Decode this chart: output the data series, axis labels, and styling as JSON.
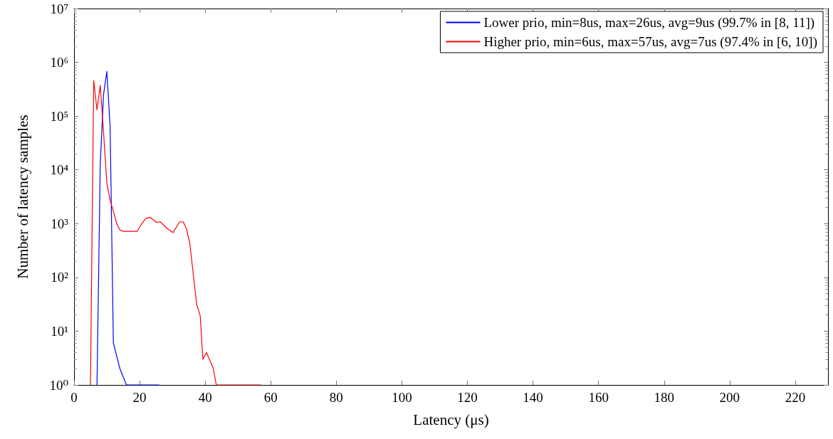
{
  "chart_data": {
    "type": "line",
    "xlabel": "Latency (μs)",
    "ylabel": "Number of latency samples",
    "log": "y",
    "grid": false,
    "legend": "top right",
    "marker": "none",
    "line_style": "solid",
    "xlim": [
      0,
      230
    ],
    "xticks": [
      0,
      20,
      40,
      60,
      80,
      100,
      120,
      140,
      160,
      180,
      200,
      220
    ],
    "ylim": [
      1,
      10000000
    ],
    "yticks": [
      {
        "value": 1,
        "label": "10⁰"
      },
      {
        "value": 10,
        "label": "10¹"
      },
      {
        "value": 100,
        "label": "10²"
      },
      {
        "value": 1000,
        "label": "10³"
      },
      {
        "value": 10000,
        "label": "10⁴"
      },
      {
        "value": 100000,
        "label": "10⁵"
      },
      {
        "value": 1000000,
        "label": "10⁶"
      },
      {
        "value": 10000000,
        "label": "10⁷"
      }
    ],
    "series": [
      {
        "name": "Lower prio, min=8us, max=26us, avg=9us (99.7% in [8, 11])",
        "color": "#0000ff",
        "x": [
          7,
          8,
          9,
          10,
          11,
          12,
          14,
          16,
          26
        ],
        "values": [
          1,
          13000,
          250000,
          680000,
          65000,
          6,
          2,
          1,
          1
        ]
      },
      {
        "name": "Higher prio, min=6us, max=57us, avg=7us (97.4% in [6, 10])",
        "color": "#ff0000",
        "x": [
          5,
          6,
          7,
          8,
          9,
          10,
          11,
          12,
          13,
          14,
          15,
          16.7,
          19.3,
          20.5,
          21.9,
          23.3,
          25.2,
          26.3,
          28.3,
          30.2,
          32.2,
          33.3,
          34.3,
          35.3,
          37.4,
          38.5,
          39.3,
          40.4,
          42.4,
          43.4,
          57
        ],
        "values": [
          1,
          460000,
          130000,
          370000,
          50000,
          5700,
          2700,
          1700,
          1000,
          760,
          720,
          720,
          720,
          970,
          1250,
          1300,
          1050,
          1080,
          820,
          680,
          1080,
          1080,
          800,
          430,
          32,
          19,
          3,
          4,
          2.1,
          1,
          1
        ]
      }
    ]
  }
}
